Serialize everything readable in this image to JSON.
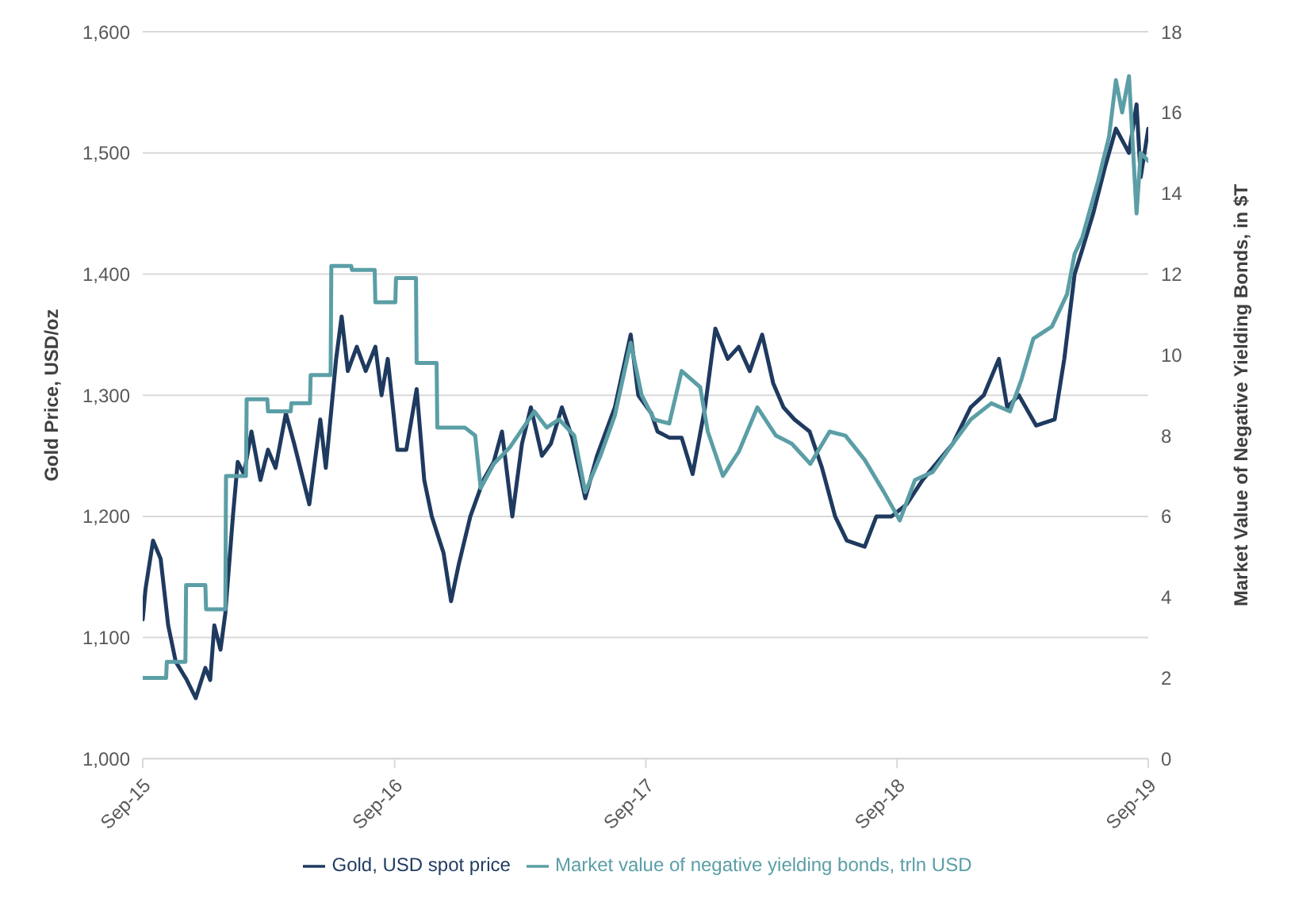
{
  "chart_data": {
    "type": "line",
    "ylabel": "Gold Price, USD/oz",
    "y2label": "Market Value of Negative Yielding Bonds, in $T",
    "xlim": [
      "2015-09-01",
      "2019-09-01"
    ],
    "xticks": [
      {
        "value": "2015-09-01",
        "label": "Sep-15"
      },
      {
        "value": "2016-09-01",
        "label": "Sep-16"
      },
      {
        "value": "2017-09-01",
        "label": "Sep-17"
      },
      {
        "value": "2018-09-01",
        "label": "Sep-18"
      },
      {
        "value": "2019-09-01",
        "label": "Sep-19"
      }
    ],
    "ylim": [
      1000,
      1600
    ],
    "yticks": [
      {
        "value": 1000,
        "label": "1,000"
      },
      {
        "value": 1100,
        "label": "1,100"
      },
      {
        "value": 1200,
        "label": "1,200"
      },
      {
        "value": 1300,
        "label": "1,300"
      },
      {
        "value": 1400,
        "label": "1,400"
      },
      {
        "value": 1500,
        "label": "1,500"
      },
      {
        "value": 1600,
        "label": "1,600"
      }
    ],
    "y2lim": [
      0,
      18
    ],
    "y2ticks": [
      0,
      2,
      4,
      6,
      8,
      10,
      12,
      14,
      16,
      18
    ],
    "grid": "y",
    "legend": "bottom",
    "marker": "none",
    "line_style": "solid",
    "series": [
      {
        "name": "Gold, USD spot price",
        "color": "#1f3a5f",
        "x": [
          "2015-09-01",
          "2015-09-05",
          "2015-09-16",
          "2015-09-27",
          "2015-10-08",
          "2015-10-19",
          "2015-11-04",
          "2015-11-17",
          "2015-12-01",
          "2015-12-08",
          "2015-12-14",
          "2015-12-23",
          "2015-12-30",
          "2016-01-10",
          "2016-01-17",
          "2016-01-26",
          "2016-02-06",
          "2016-02-19",
          "2016-03-01",
          "2016-03-12",
          "2016-03-27",
          "2016-04-08",
          "2016-04-30",
          "2016-05-16",
          "2016-05-24",
          "2016-06-08",
          "2016-06-16",
          "2016-06-25",
          "2016-07-08",
          "2016-07-21",
          "2016-08-04",
          "2016-08-13",
          "2016-08-22",
          "2016-09-05",
          "2016-09-18",
          "2016-10-03",
          "2016-10-14",
          "2016-10-25",
          "2016-11-11",
          "2016-11-22",
          "2016-12-03",
          "2016-12-20",
          "2017-01-08",
          "2017-01-23",
          "2017-02-04",
          "2017-02-19",
          "2017-03-05",
          "2017-03-18",
          "2017-04-03",
          "2017-04-16",
          "2017-05-02",
          "2017-05-17",
          "2017-06-05",
          "2017-06-22",
          "2017-07-18",
          "2017-08-10",
          "2017-08-21",
          "2017-09-09",
          "2017-09-18",
          "2017-10-05",
          "2017-10-23",
          "2017-11-08",
          "2017-11-26",
          "2017-12-11",
          "2017-12-29",
          "2018-01-14",
          "2018-01-30",
          "2018-02-17",
          "2018-03-05",
          "2018-03-20",
          "2018-04-05",
          "2018-04-27",
          "2018-05-15",
          "2018-06-03",
          "2018-06-20",
          "2018-07-16",
          "2018-08-02",
          "2018-08-24",
          "2018-09-15",
          "2018-10-08",
          "2018-10-30",
          "2018-11-21",
          "2018-12-17",
          "2019-01-05",
          "2019-01-27",
          "2019-02-08",
          "2019-02-25",
          "2019-03-22",
          "2019-04-18",
          "2019-05-02",
          "2019-05-17",
          "2019-05-28",
          "2019-06-13",
          "2019-07-01",
          "2019-07-16",
          "2019-08-04",
          "2019-08-15",
          "2019-08-21",
          "2019-09-01"
        ],
        "values": [
          1115,
          1140,
          1180,
          1165,
          1110,
          1080,
          1065,
          1050,
          1075,
          1065,
          1110,
          1090,
          1120,
          1200,
          1245,
          1235,
          1270,
          1230,
          1255,
          1240,
          1285,
          1260,
          1210,
          1280,
          1240,
          1330,
          1365,
          1320,
          1340,
          1320,
          1340,
          1300,
          1330,
          1255,
          1255,
          1305,
          1230,
          1200,
          1170,
          1130,
          1160,
          1200,
          1230,
          1245,
          1270,
          1200,
          1260,
          1290,
          1250,
          1260,
          1290,
          1265,
          1215,
          1250,
          1290,
          1350,
          1300,
          1285,
          1270,
          1265,
          1265,
          1235,
          1290,
          1355,
          1330,
          1340,
          1320,
          1350,
          1310,
          1290,
          1280,
          1270,
          1240,
          1200,
          1180,
          1175,
          1200,
          1200,
          1210,
          1230,
          1245,
          1260,
          1290,
          1300,
          1330,
          1290,
          1300,
          1275,
          1280,
          1330,
          1400,
          1420,
          1450,
          1490,
          1520,
          1500,
          1540,
          1480,
          1520
        ]
      },
      {
        "name": "Market value of negative yielding bonds, trln USD",
        "color": "#5b9ea6",
        "axis": "y2",
        "x": [
          "2015-09-01",
          "2015-10-05",
          "2015-10-06",
          "2015-11-02",
          "2015-11-03",
          "2015-12-01",
          "2015-12-02",
          "2015-12-30",
          "2015-12-31",
          "2016-01-29",
          "2016-01-30",
          "2016-02-29",
          "2016-03-01",
          "2016-04-03",
          "2016-04-04",
          "2016-05-01",
          "2016-05-02",
          "2016-05-31",
          "2016-06-01",
          "2016-06-30",
          "2016-07-01",
          "2016-08-03",
          "2016-08-04",
          "2016-09-02",
          "2016-09-03",
          "2016-10-02",
          "2016-10-03",
          "2016-11-01",
          "2016-11-02",
          "2016-12-12",
          "2016-12-27",
          "2017-01-04",
          "2017-01-23",
          "2017-02-15",
          "2017-03-07",
          "2017-03-23",
          "2017-04-10",
          "2017-04-28",
          "2017-05-20",
          "2017-06-05",
          "2017-06-27",
          "2017-07-18",
          "2017-08-10",
          "2017-08-26",
          "2017-09-13",
          "2017-10-05",
          "2017-10-23",
          "2017-11-19",
          "2017-11-30",
          "2017-12-22",
          "2018-01-14",
          "2018-02-10",
          "2018-03-09",
          "2018-04-01",
          "2018-04-28",
          "2018-05-26",
          "2018-06-18",
          "2018-07-16",
          "2018-08-13",
          "2018-09-05",
          "2018-09-27",
          "2018-10-23",
          "2018-11-21",
          "2018-12-17",
          "2019-01-16",
          "2019-02-12",
          "2019-03-01",
          "2019-03-18",
          "2019-04-14",
          "2019-05-06",
          "2019-05-17",
          "2019-05-28",
          "2019-06-20",
          "2019-07-06",
          "2019-07-16",
          "2019-07-25",
          "2019-08-04",
          "2019-08-15",
          "2019-08-21",
          "2019-09-01"
        ],
        "values": [
          2.0,
          2.0,
          2.4,
          2.4,
          4.3,
          4.3,
          3.7,
          3.7,
          7.0,
          7.0,
          8.9,
          8.9,
          8.6,
          8.6,
          8.8,
          8.8,
          9.5,
          9.5,
          12.2,
          12.2,
          12.1,
          12.1,
          11.3,
          11.3,
          11.9,
          11.9,
          9.8,
          9.8,
          8.2,
          8.2,
          8.0,
          6.7,
          7.3,
          7.7,
          8.2,
          8.6,
          8.2,
          8.4,
          8.0,
          6.6,
          7.5,
          8.5,
          10.3,
          9.0,
          8.4,
          8.3,
          9.6,
          9.2,
          8.1,
          7.0,
          7.6,
          8.7,
          8.0,
          7.8,
          7.3,
          8.1,
          8.0,
          7.4,
          6.6,
          5.9,
          6.9,
          7.1,
          7.8,
          8.4,
          8.8,
          8.6,
          9.4,
          10.4,
          10.7,
          11.5,
          12.5,
          12.9,
          14.3,
          15.4,
          16.8,
          16.0,
          16.9,
          13.5,
          15.0,
          14.8
        ]
      }
    ]
  }
}
